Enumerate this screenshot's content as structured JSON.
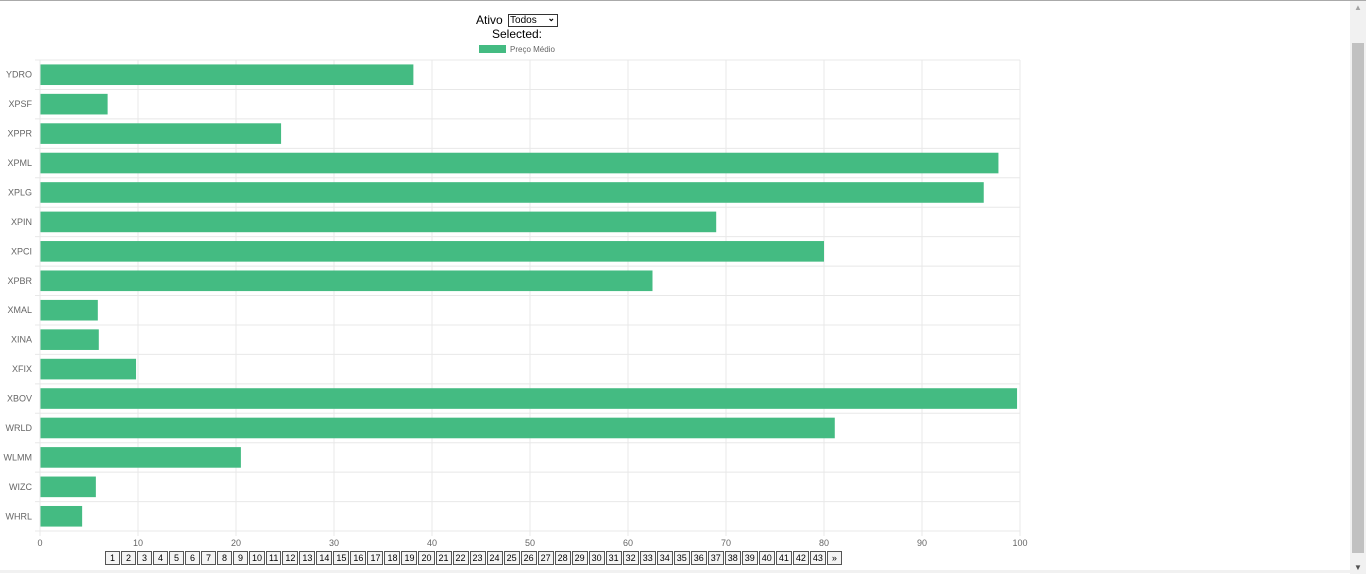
{
  "filter": {
    "label": "Ativo",
    "selected_value": "Todos",
    "selected_text": "Selected:"
  },
  "pagination": {
    "pages": [
      "1",
      "2",
      "3",
      "4",
      "5",
      "6",
      "7",
      "8",
      "9",
      "10",
      "11",
      "12",
      "13",
      "14",
      "15",
      "16",
      "17",
      "18",
      "19",
      "20",
      "21",
      "22",
      "23",
      "24",
      "25",
      "26",
      "27",
      "28",
      "29",
      "30",
      "31",
      "32",
      "33",
      "34",
      "35",
      "36",
      "37",
      "38",
      "39",
      "40",
      "41",
      "42",
      "43"
    ],
    "next_label": "»"
  },
  "colors": {
    "bar": "#44bb82",
    "grid": "#e8e8e8",
    "tick_text": "#666666"
  },
  "chart_data": {
    "type": "bar",
    "orientation": "horizontal",
    "categories": [
      "YDRO",
      "XPSF",
      "XPPR",
      "XPML",
      "XPLG",
      "XPIN",
      "XPCI",
      "XPBR",
      "XMAL",
      "XINA",
      "XFIX",
      "XBOV",
      "WRLD",
      "WLMM",
      "WIZC",
      "WHRL"
    ],
    "series": [
      {
        "name": "Preço Médio",
        "values": [
          38.1,
          6.9,
          24.6,
          97.8,
          96.3,
          69.0,
          80.0,
          62.5,
          5.9,
          6.0,
          9.8,
          99.7,
          81.1,
          20.5,
          5.7,
          4.3
        ]
      }
    ],
    "xlim": [
      0,
      100
    ],
    "xticks": [
      0,
      10,
      20,
      30,
      40,
      50,
      60,
      70,
      80,
      90,
      100
    ],
    "xlabel": "",
    "ylabel": "",
    "grid": true,
    "legend_position": "top-center"
  }
}
